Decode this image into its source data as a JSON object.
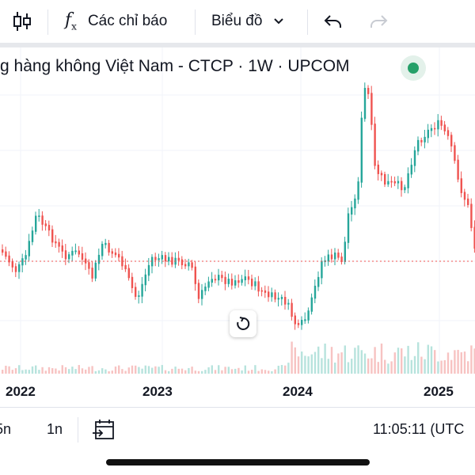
{
  "toolbar": {
    "candles_icon": "candlestick-icon",
    "indicators_label": "Các chỉ báo",
    "chart_label": "Biểu đồ",
    "undo_icon": "undo-icon",
    "redo_icon": "redo-icon"
  },
  "legend": {
    "text": "g hàng không Việt Nam - CTCP · 1W · UPCOM",
    "status_color": "#26a069"
  },
  "colors": {
    "up": "#26a69a",
    "down": "#ef5350",
    "price_line": "#ef5350"
  },
  "chart_data": {
    "type": "candlestick",
    "x_tick_labels": [
      "2022",
      "2023",
      "2024",
      "2025"
    ],
    "grid": true
  },
  "bottombar": {
    "ranges": [
      "5n",
      "1n"
    ],
    "goto_date_icon": "calendar-arrow-icon",
    "time": "11:05:11 (UTC"
  },
  "reset_icon": "reset-icon"
}
